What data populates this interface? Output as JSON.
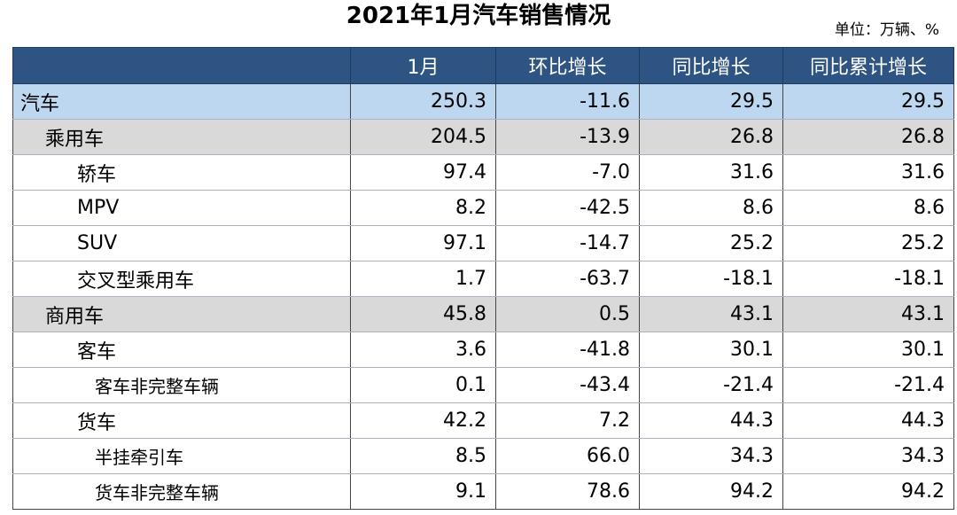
{
  "title": "2021年1月汽车销售情况",
  "unit_label": "单位：万辆、%",
  "table": {
    "headers": [
      "",
      "1月",
      "环比增长",
      "同比增长",
      "同比累计增长"
    ],
    "rows": [
      {
        "name": "汽车",
        "level": 0,
        "values": [
          "250.3",
          "-11.6",
          "29.5",
          "29.5"
        ]
      },
      {
        "name": "乘用车",
        "level": 1,
        "values": [
          "204.5",
          "-13.9",
          "26.8",
          "26.8"
        ]
      },
      {
        "name": "轿车",
        "level": 2,
        "values": [
          "97.4",
          "-7.0",
          "31.6",
          "31.6"
        ]
      },
      {
        "name": "MPV",
        "level": 2,
        "values": [
          "8.2",
          "-42.5",
          "8.6",
          "8.6"
        ]
      },
      {
        "name": "SUV",
        "level": 2,
        "values": [
          "97.1",
          "-14.7",
          "25.2",
          "25.2"
        ]
      },
      {
        "name": "交叉型乘用车",
        "level": 2,
        "values": [
          "1.7",
          "-63.7",
          "-18.1",
          "-18.1"
        ]
      },
      {
        "name": "商用车",
        "level": 1,
        "values": [
          "45.8",
          "0.5",
          "43.1",
          "43.1"
        ]
      },
      {
        "name": "客车",
        "level": 2,
        "values": [
          "3.6",
          "-41.8",
          "30.1",
          "30.1"
        ]
      },
      {
        "name": "客车非完整车辆",
        "level": 3,
        "values": [
          "0.1",
          "-43.4",
          "-21.4",
          "-21.4"
        ]
      },
      {
        "name": "货车",
        "level": 2,
        "values": [
          "42.2",
          "7.2",
          "44.3",
          "44.3"
        ]
      },
      {
        "name": "半挂牵引车",
        "level": 3,
        "values": [
          "8.5",
          "66.0",
          "34.3",
          "34.3"
        ]
      },
      {
        "name": "货车非完整车辆",
        "level": 3,
        "values": [
          "9.1",
          "78.6",
          "94.2",
          "94.2"
        ]
      }
    ]
  },
  "colors": {
    "header_bg": "#2e5484",
    "header_text": "#ffffff",
    "level0_bg": "#bcd7ef",
    "level1_bg": "#d9d9d9"
  }
}
